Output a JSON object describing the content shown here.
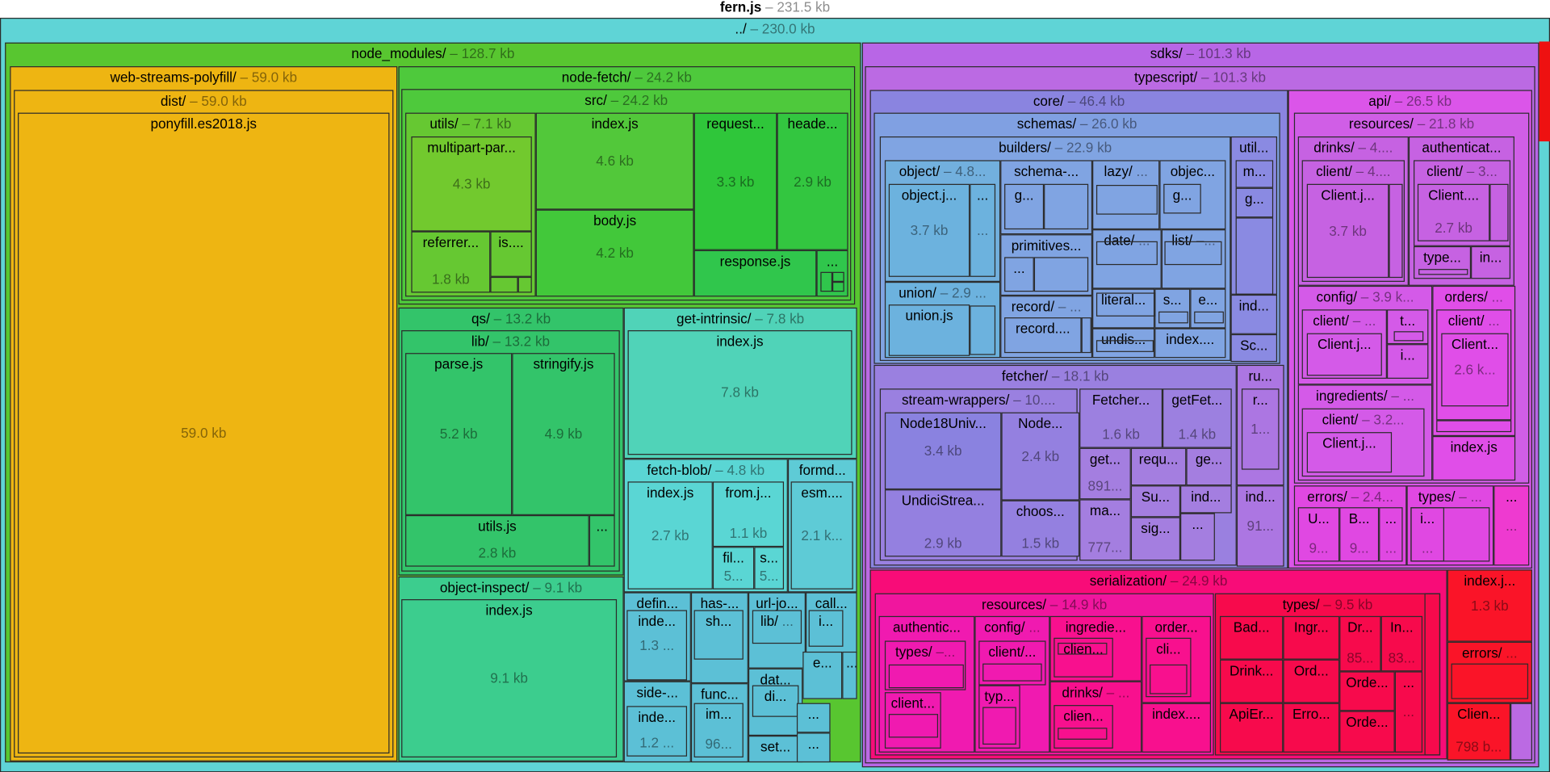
{
  "title": {
    "name": "fern.js",
    "size": "– 231.5 kb"
  },
  "nodes": [
    {
      "name": "../",
      "size": "– 230.0 kb",
      "color": "#5fd4d6"
    },
    {
      "name": "node_modules/",
      "size": "– 128.7 kb",
      "color": "#58c630"
    },
    {
      "name": "web-streams-polyfill/",
      "size": "– 59.0 kb",
      "color": "#eeb512"
    },
    {
      "name": "dist/",
      "size": "– 59.0 kb"
    },
    {
      "name": "ponyfill.es2018.js",
      "size": "59.0 kb"
    },
    {
      "name": "node-fetch/",
      "size": "– 24.2 kb",
      "color": "#4ec93c"
    },
    {
      "name": "src/",
      "size": "– 24.2 kb"
    },
    {
      "name": "utils/",
      "size": "– 7.1 kb",
      "color": "#66c832"
    },
    {
      "name": "multipart-par...",
      "size": "4.3 kb",
      "color": "#72c92e"
    },
    {
      "name": "referrer...",
      "size": "1.8 kb",
      "color": "#66c832"
    },
    {
      "name": "is....",
      "size": ""
    },
    {
      "name": "index.js",
      "size": "4.6 kb",
      "color": "#52c83a"
    },
    {
      "name": "body.js",
      "size": "4.2 kb",
      "color": "#42c83a"
    },
    {
      "name": "request...",
      "size": "3.3 kb",
      "color": "#2fc63a"
    },
    {
      "name": "heade...",
      "size": "2.9 kb",
      "color": "#33c640"
    },
    {
      "name": "response.js",
      "size": "",
      "color": "#30c64c"
    },
    {
      "name": "...",
      "size": ""
    },
    {
      "name": "qs/",
      "size": "– 13.2 kb",
      "color": "#33c46a"
    },
    {
      "name": "lib/",
      "size": "– 13.2 kb"
    },
    {
      "name": "parse.js",
      "size": "5.2 kb"
    },
    {
      "name": "stringify.js",
      "size": "4.9 kb"
    },
    {
      "name": "utils.js",
      "size": "2.8 kb"
    },
    {
      "name": "...",
      "size": ""
    },
    {
      "name": "object-inspect/",
      "size": "– 9.1 kb",
      "color": "#3ccd8e"
    },
    {
      "name": "index.js",
      "size": "9.1 kb"
    },
    {
      "name": "get-intrinsic/",
      "size": "– 7.8 kb",
      "color": "#50d3b8"
    },
    {
      "name": "index.js",
      "size": "7.8 kb"
    },
    {
      "name": "fetch-blob/",
      "size": "– 4.8 kb",
      "color": "#5ad6d4"
    },
    {
      "name": "index.js",
      "size": "2.7 kb"
    },
    {
      "name": "from.j...",
      "size": "1.1 kb"
    },
    {
      "name": "fil...",
      "size": "5..."
    },
    {
      "name": "s...",
      "size": "5..."
    },
    {
      "name": "formd...",
      "size": "",
      "color": "#5ecbd6"
    },
    {
      "name": "esm....",
      "size": "2.1 k..."
    },
    {
      "name": "defin...",
      "size": "",
      "color": "#5cc0d6"
    },
    {
      "name": "inde...",
      "size": "1.3 ..."
    },
    {
      "name": "side-...",
      "size": ""
    },
    {
      "name": "inde...",
      "size": "1.2 ..."
    },
    {
      "name": "has-...",
      "size": ""
    },
    {
      "name": "sh...",
      "size": ""
    },
    {
      "name": "func...",
      "size": ""
    },
    {
      "name": "im...",
      "size": "96..."
    },
    {
      "name": "url-jo...",
      "size": ""
    },
    {
      "name": "lib/",
      "size": "..."
    },
    {
      "name": "call...",
      "size": ""
    },
    {
      "name": "i...",
      "size": ""
    },
    {
      "name": "dat...",
      "size": ""
    },
    {
      "name": "di...",
      "size": ""
    },
    {
      "name": "set...",
      "size": ""
    },
    {
      "name": "e...",
      "size": ""
    },
    {
      "name": "...",
      "size": ""
    },
    {
      "name": "...",
      "size": ""
    },
    {
      "name": "...",
      "size": ""
    },
    {
      "name": "sdks/",
      "size": "– 101.3 kb",
      "color": "#b866e6"
    },
    {
      "name": "typescript/",
      "size": "– 101.3 kb",
      "color": "#bb6ae3"
    },
    {
      "name": "core/",
      "size": "– 46.4 kb",
      "color": "#8a84e0"
    },
    {
      "name": "schemas/",
      "size": "– 26.0 kb",
      "color": "#80a0e2"
    },
    {
      "name": "builders/",
      "size": "– 22.9 kb",
      "color": "#80a4e2"
    },
    {
      "name": "object/",
      "size": "– 4.8...",
      "color": "#72b0de"
    },
    {
      "name": "object.j...",
      "size": "3.7 kb",
      "color": "#6cb2de"
    },
    {
      "name": "...",
      "size": "..."
    },
    {
      "name": "union/",
      "size": "– 2.9 ..."
    },
    {
      "name": "union.js",
      "size": ""
    },
    {
      "name": "schema-...",
      "size": "",
      "color": "#80a4e2"
    },
    {
      "name": "g...",
      "size": ""
    },
    {
      "name": "primitives...",
      "size": ""
    },
    {
      "name": "...",
      "size": ""
    },
    {
      "name": "record/",
      "size": "– ..."
    },
    {
      "name": "record....",
      "size": ""
    },
    {
      "name": "lazy/",
      "size": "..."
    },
    {
      "name": "objec...",
      "size": ""
    },
    {
      "name": "g...",
      "size": ""
    },
    {
      "name": "date/",
      "size": "..."
    },
    {
      "name": "list/",
      "size": "–..."
    },
    {
      "name": "literal...",
      "size": ""
    },
    {
      "name": "s...",
      "size": ""
    },
    {
      "name": "e...",
      "size": ""
    },
    {
      "name": "undis...",
      "size": ""
    },
    {
      "name": "index....",
      "size": ""
    },
    {
      "name": "util...",
      "size": "",
      "color": "#8a8ae2"
    },
    {
      "name": "m...",
      "size": ""
    },
    {
      "name": "g...",
      "size": ""
    },
    {
      "name": "ind...",
      "size": ""
    },
    {
      "name": "Sc...",
      "size": ""
    },
    {
      "name": "fetcher/",
      "size": "– 18.1 kb",
      "color": "#9a80e0"
    },
    {
      "name": "stream-wrappers/",
      "size": "– 10...."
    },
    {
      "name": "Node18Univ...",
      "size": "3.4 kb",
      "color": "#8a82e0"
    },
    {
      "name": "UndiciStrea...",
      "size": "2.9 kb",
      "color": "#9480e0"
    },
    {
      "name": "Node...",
      "size": "2.4 kb"
    },
    {
      "name": "choos...",
      "size": "1.5 kb"
    },
    {
      "name": "Fetcher...",
      "size": "1.6 kb",
      "color": "#9c80e0"
    },
    {
      "name": "getFet...",
      "size": "1.4 kb"
    },
    {
      "name": "get...",
      "size": "891...",
      "color": "#a47ee0"
    },
    {
      "name": "ma...",
      "size": "777..."
    },
    {
      "name": "requ...",
      "size": ""
    },
    {
      "name": "ge...",
      "size": ""
    },
    {
      "name": "Su...",
      "size": ""
    },
    {
      "name": "ind...",
      "size": ""
    },
    {
      "name": "sig...",
      "size": ""
    },
    {
      "name": "...",
      "size": ""
    },
    {
      "name": "ru...",
      "size": "",
      "color": "#ac76e2"
    },
    {
      "name": "r...",
      "size": "1..."
    },
    {
      "name": "ind...",
      "size": "91..."
    },
    {
      "name": "api/",
      "size": "– 26.5 kb",
      "color": "#db55e9"
    },
    {
      "name": "resources/",
      "size": "– 21.8 kb",
      "color": "#d05ee6"
    },
    {
      "name": "drinks/",
      "size": "– 4....",
      "color": "#c662e2"
    },
    {
      "name": "client/",
      "size": "– 4...."
    },
    {
      "name": "Client.j...",
      "size": "3.7 kb"
    },
    {
      "name": "authenticat...",
      "size": ""
    },
    {
      "name": "client/",
      "size": "– 3..."
    },
    {
      "name": "Client....",
      "size": "2.7 kb"
    },
    {
      "name": "type...",
      "size": ""
    },
    {
      "name": "in...",
      "size": ""
    },
    {
      "name": "config/",
      "size": "– 3.9 k...",
      "color": "#d45ae8"
    },
    {
      "name": "client/",
      "size": "– ..."
    },
    {
      "name": "Client.j...",
      "size": ""
    },
    {
      "name": "t...",
      "size": ""
    },
    {
      "name": "i...",
      "size": ""
    },
    {
      "name": "ingredients/",
      "size": "– ..."
    },
    {
      "name": "client/",
      "size": "– 3.2..."
    },
    {
      "name": "Client.j...",
      "size": ""
    },
    {
      "name": "orders/",
      "size": "...",
      "color": "#e04ee8"
    },
    {
      "name": "client/",
      "size": "..."
    },
    {
      "name": "Client...",
      "size": "2.6 k..."
    },
    {
      "name": "index.js",
      "size": ""
    },
    {
      "name": "errors/",
      "size": "– 2.4...",
      "color": "#e048e2"
    },
    {
      "name": "U...",
      "size": "9..."
    },
    {
      "name": "B...",
      "size": "9..."
    },
    {
      "name": "...",
      "size": "..."
    },
    {
      "name": "types/",
      "size": "– ..."
    },
    {
      "name": "i...",
      "size": "..."
    },
    {
      "name": "...",
      "size": "...",
      "color": "#ee3ad0"
    },
    {
      "name": "serialization/",
      "size": "– 24.9 kb",
      "color": "#f80c78"
    },
    {
      "name": "resources/",
      "size": "– 14.9 kb",
      "color": "#f0169e"
    },
    {
      "name": "authentic...",
      "size": "",
      "color": "#f01ab0"
    },
    {
      "name": "types/",
      "size": "–..."
    },
    {
      "name": "client...",
      "size": ""
    },
    {
      "name": "config/",
      "size": "..."
    },
    {
      "name": "client/...",
      "size": ""
    },
    {
      "name": "typ...",
      "size": ""
    },
    {
      "name": "ingredie...",
      "size": "",
      "color": "#f8108e"
    },
    {
      "name": "clien...",
      "size": ""
    },
    {
      "name": "drinks/",
      "size": "– ..."
    },
    {
      "name": "clien...",
      "size": ""
    },
    {
      "name": "order...",
      "size": ""
    },
    {
      "name": "cli...",
      "size": ""
    },
    {
      "name": "index....",
      "size": ""
    },
    {
      "name": "types/",
      "size": "– 9.5 kb",
      "color": "#f70a4c"
    },
    {
      "name": "Bad...",
      "size": ""
    },
    {
      "name": "Ingr...",
      "size": ""
    },
    {
      "name": "Dr...",
      "size": "85..."
    },
    {
      "name": "In...",
      "size": "83..."
    },
    {
      "name": "Drink...",
      "size": ""
    },
    {
      "name": "Ord...",
      "size": ""
    },
    {
      "name": "ApiEr...",
      "size": ""
    },
    {
      "name": "Erro...",
      "size": ""
    },
    {
      "name": "Orde...",
      "size": ""
    },
    {
      "name": "Orde...",
      "size": ""
    },
    {
      "name": "...",
      "size": "..."
    },
    {
      "name": "index.j...",
      "size": "1.3 kb",
      "color": "#fa1428"
    },
    {
      "name": "errors/",
      "size": "..."
    },
    {
      "name": "Clien...",
      "size": "798 b..."
    }
  ],
  "extra_block_color": "#ee1111"
}
